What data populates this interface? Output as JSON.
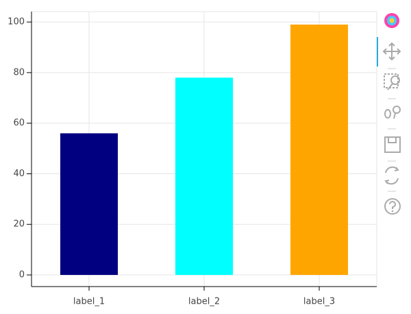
{
  "chart_data": {
    "type": "bar",
    "categories": [
      "label_1",
      "label_2",
      "label_3"
    ],
    "values": [
      56,
      78,
      99
    ],
    "colors": [
      "#000080",
      "#00ffff",
      "#ffa500"
    ],
    "ylim": [
      -4.6,
      104.1
    ],
    "yticks": [
      0,
      20,
      40,
      60,
      80,
      100
    ],
    "grid": true
  }
}
